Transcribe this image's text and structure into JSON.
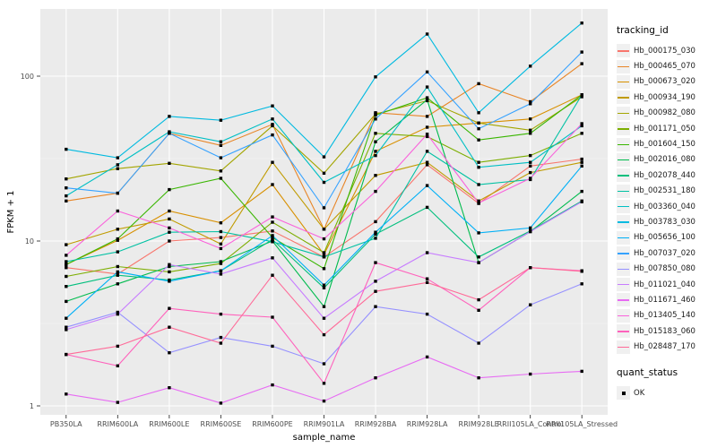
{
  "chart_data": {
    "type": "line",
    "title": "",
    "xlabel": "sample_name",
    "ylabel": "FPKM + 1",
    "y_scale": "log10",
    "y_ticks": [
      "1",
      "10",
      "100"
    ],
    "ylim": [
      0.86,
      255
    ],
    "grid": "ggplot-grey-panel-white-gridlines",
    "legend_position": "right",
    "legend_title": "tracking_id",
    "marker": "black-square",
    "panel_color": "#EBEBEB",
    "categories": [
      "PB350LA",
      "RRIM600LA",
      "RRIM600LE",
      "RRIM600SE",
      "RRIM600PE",
      "RRIM901LA",
      "RRIM928BA",
      "RRIM928LA",
      "RRIM928LE",
      "RRII105LA_Control",
      "RRII105LA_Stressed"
    ],
    "series": [
      {
        "name": "Hb_000175_030",
        "color": "#F8766D",
        "values": [
          6.9,
          6.3,
          10.0,
          10.5,
          11.5,
          8.0,
          13.1,
          29.0,
          16.9,
          28.5,
          31.4
        ]
      },
      {
        "name": "Hb_000465_070",
        "color": "#E88526",
        "values": [
          17.5,
          19.5,
          45.0,
          38.0,
          51.0,
          11.8,
          60.0,
          57.0,
          90.0,
          70.0,
          119.0
        ]
      },
      {
        "name": "Hb_000673_020",
        "color": "#D89000",
        "values": [
          7.2,
          10.1,
          15.2,
          12.9,
          22.0,
          8.3,
          35.0,
          49.0,
          52.0,
          55.0,
          77.0
        ]
      },
      {
        "name": "Hb_000934_190",
        "color": "#C09B00",
        "values": [
          9.5,
          11.8,
          13.6,
          9.6,
          30.0,
          11.8,
          25.0,
          30.0,
          17.5,
          26.0,
          30.0
        ]
      },
      {
        "name": "Hb_000982_080",
        "color": "#A3A500",
        "values": [
          23.8,
          27.5,
          29.6,
          26.6,
          50.0,
          25.8,
          59.0,
          71.0,
          52.0,
          47.0,
          75.0
        ]
      },
      {
        "name": "Hb_001171_050",
        "color": "#7CAE00",
        "values": [
          6.1,
          7.0,
          6.5,
          7.3,
          13.0,
          8.5,
          45.0,
          43.0,
          30.0,
          33.0,
          45.0
        ]
      },
      {
        "name": "Hb_001604_150",
        "color": "#39B600",
        "values": [
          7.2,
          10.3,
          20.5,
          24.0,
          10.5,
          6.8,
          58.0,
          74.0,
          41.0,
          45.0,
          77.0
        ]
      },
      {
        "name": "Hb_002016_080",
        "color": "#00BB4E",
        "values": [
          4.3,
          5.5,
          7.0,
          7.5,
          10.0,
          4.0,
          40.0,
          72.0,
          7.4,
          11.4,
          20.0
        ]
      },
      {
        "name": "Hb_002078_440",
        "color": "#00BF7D",
        "values": [
          5.3,
          6.2,
          5.8,
          6.6,
          10.2,
          5.2,
          11.0,
          16.0,
          8.0,
          11.5,
          17.5
        ]
      },
      {
        "name": "Hb_002531_180",
        "color": "#00C1A3",
        "values": [
          7.5,
          8.6,
          11.3,
          11.4,
          9.9,
          8.0,
          10.4,
          35.0,
          22.0,
          23.6,
          77.0
        ]
      },
      {
        "name": "Hb_003360_040",
        "color": "#00BFC4",
        "values": [
          18.8,
          29.0,
          46.0,
          40.0,
          55.0,
          22.7,
          33.0,
          86.0,
          28.0,
          30.0,
          50.0
        ]
      },
      {
        "name": "Hb_003783_030",
        "color": "#00BAE0",
        "values": [
          36.0,
          32.0,
          57.0,
          54.0,
          66.0,
          32.4,
          99.0,
          180.0,
          60.0,
          115.0,
          210.0
        ]
      },
      {
        "name": "Hb_005656_100",
        "color": "#00B0F6",
        "values": [
          3.4,
          6.5,
          5.7,
          6.6,
          10.8,
          5.4,
          11.3,
          21.7,
          11.2,
          12.0,
          28.5
        ]
      },
      {
        "name": "Hb_007037_020",
        "color": "#35A2FF",
        "values": [
          21.0,
          19.5,
          45.0,
          32.0,
          44.0,
          15.9,
          55.0,
          106.0,
          48.0,
          68.0,
          140.0
        ]
      },
      {
        "name": "Hb_007850_080",
        "color": "#9590FF",
        "values": [
          3.0,
          3.7,
          2.1,
          2.6,
          2.3,
          1.8,
          4.0,
          3.6,
          2.4,
          4.1,
          5.5
        ]
      },
      {
        "name": "Hb_011021_040",
        "color": "#C77CFF",
        "values": [
          2.9,
          3.6,
          7.2,
          6.3,
          7.9,
          3.4,
          5.7,
          8.5,
          7.4,
          11.4,
          17.3
        ]
      },
      {
        "name": "Hb_011671_460",
        "color": "#E76BF3",
        "values": [
          1.18,
          1.05,
          1.29,
          1.04,
          1.34,
          1.07,
          1.48,
          1.98,
          1.48,
          1.56,
          1.62
        ]
      },
      {
        "name": "Hb_013405_140",
        "color": "#FA62DB",
        "values": [
          8.2,
          15.2,
          12.0,
          9.0,
          14.0,
          10.3,
          20.0,
          44.5,
          17.0,
          24.0,
          51.5
        ]
      },
      {
        "name": "Hb_015183_060",
        "color": "#FF62BC",
        "values": [
          2.05,
          1.75,
          3.9,
          3.6,
          3.45,
          1.37,
          7.4,
          5.9,
          3.8,
          6.9,
          6.6
        ]
      },
      {
        "name": "Hb_028487_170",
        "color": "#FF6A98",
        "values": [
          2.05,
          2.3,
          3.0,
          2.4,
          6.2,
          2.7,
          4.95,
          5.6,
          4.4,
          6.9,
          6.55
        ]
      }
    ],
    "quant_legend": {
      "title": "quant_status",
      "items": [
        "OK"
      ]
    }
  }
}
